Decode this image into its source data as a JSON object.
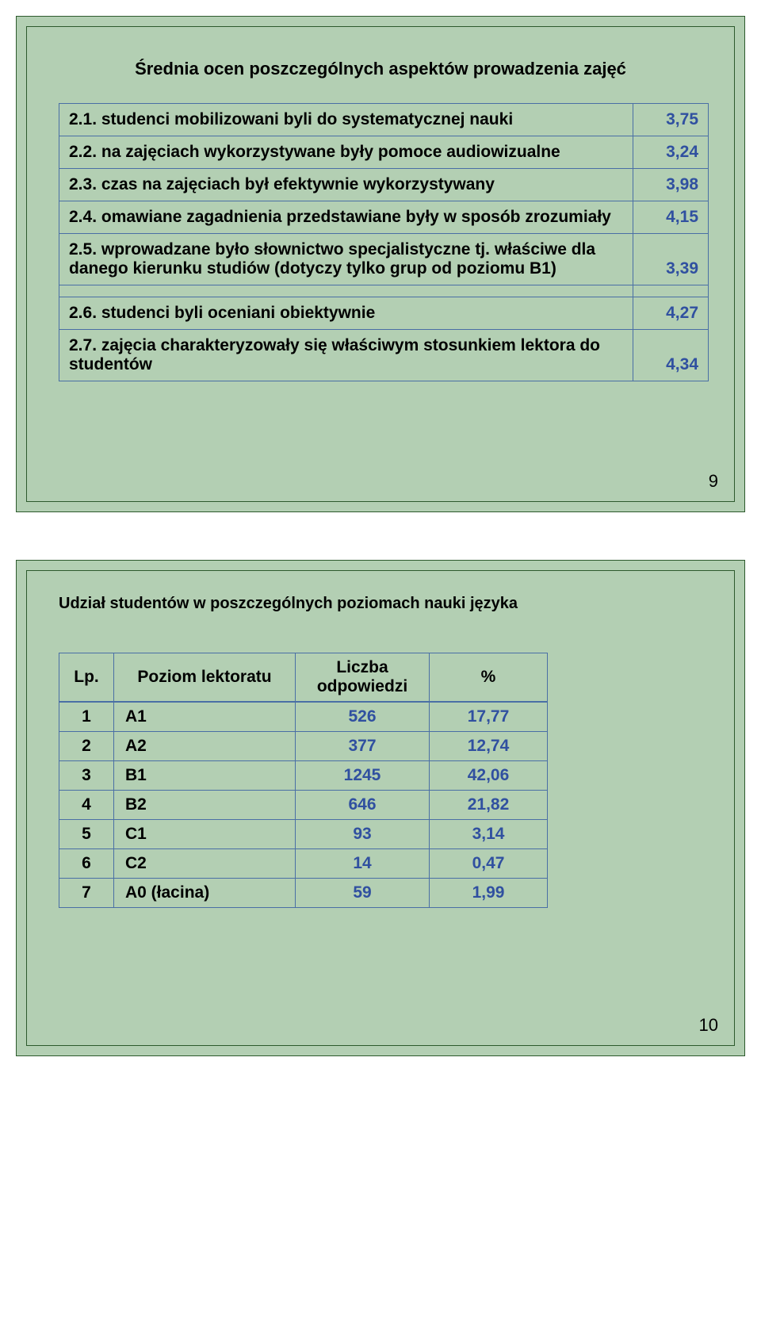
{
  "colors": {
    "slide_background": "#b3cfb3",
    "slide_border": "#2d5a2d",
    "table_border": "#4a6fa5",
    "value_text": "#3050a0",
    "text": "#000000",
    "page_background": "#ffffff"
  },
  "typography": {
    "font_family": "Arial",
    "title_fontsize": 22,
    "body_fontsize": 21,
    "page_num_fontsize": 22
  },
  "slide1": {
    "title": "Średnia ocen poszczególnych aspektów prowadzenia zajęć",
    "rows_a": [
      {
        "label": "2.1. studenci mobilizowani byli do systematycznej nauki",
        "value": "3,75"
      },
      {
        "label": "2.2. na zajęciach wykorzystywane były pomoce audiowizualne",
        "value": "3,24"
      },
      {
        "label": "2.3. czas na zajęciach był efektywnie wykorzystywany",
        "value": "3,98"
      },
      {
        "label": "2.4. omawiane zagadnienia przedstawiane były w sposób zrozumiały",
        "value": "4,15"
      },
      {
        "label": "2.5. wprowadzane było słownictwo specjalistyczne tj. właściwe dla danego kierunku studiów (dotyczy tylko grup od poziomu B1)",
        "value": "3,39"
      }
    ],
    "rows_b": [
      {
        "label": "2.6. studenci byli oceniani obiektywnie",
        "value": "4,27"
      },
      {
        "label": "2.7. zajęcia charakteryzowały się właściwym stosunkiem lektora do studentów",
        "value": "4,34"
      }
    ],
    "page_number": "9"
  },
  "slide2": {
    "title": "Udział studentów w poszczególnych poziomach nauki języka",
    "headers": {
      "lp": "Lp.",
      "level": "Poziom lektoratu",
      "count": "Liczba odpowiedzi",
      "pct": "%"
    },
    "rows": [
      {
        "lp": "1",
        "level": "A1",
        "count": "526",
        "pct": "17,77"
      },
      {
        "lp": "2",
        "level": "A2",
        "count": "377",
        "pct": "12,74"
      },
      {
        "lp": "3",
        "level": "B1",
        "count": "1245",
        "pct": "42,06"
      },
      {
        "lp": "4",
        "level": "B2",
        "count": "646",
        "pct": "21,82"
      },
      {
        "lp": "5",
        "level": "C1",
        "count": "93",
        "pct": "3,14"
      },
      {
        "lp": "6",
        "level": "C2",
        "count": "14",
        "pct": "0,47"
      },
      {
        "lp": "7",
        "level": "A0 (łacina)",
        "count": "59",
        "pct": "1,99"
      }
    ],
    "page_number": "10"
  }
}
